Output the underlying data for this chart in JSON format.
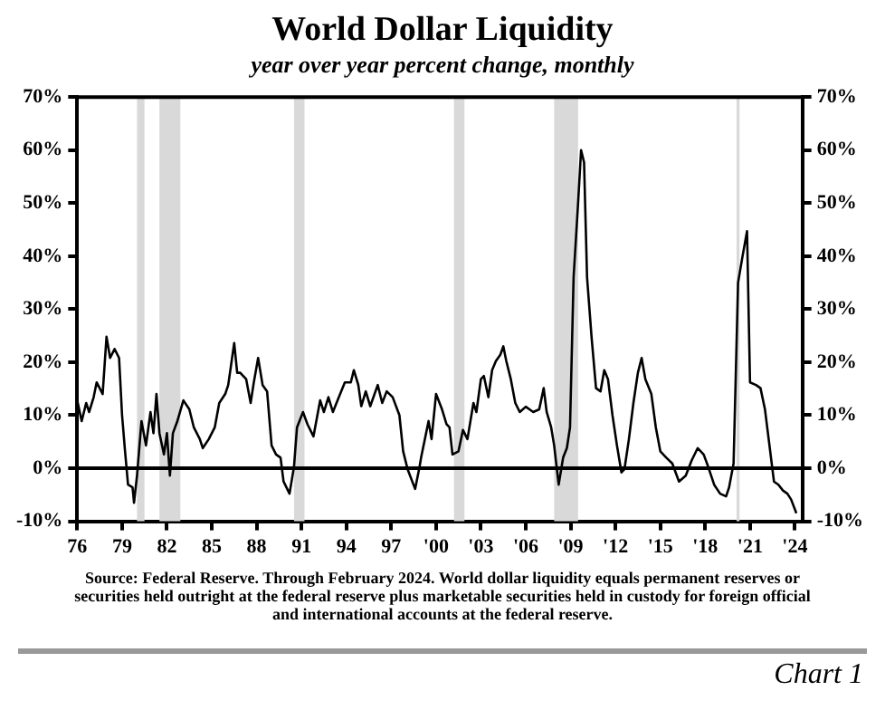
{
  "chart_data": {
    "type": "line",
    "title": "World Dollar Liquidity",
    "subtitle": "year over year percent change, monthly",
    "x": [
      1976.0,
      1976.3,
      1976.6,
      1976.8,
      1977.1,
      1977.3,
      1977.7,
      1977.96,
      1978.2,
      1978.5,
      1978.8,
      1979.0,
      1979.2,
      1979.4,
      1979.7,
      1979.8,
      1980.0,
      1980.3,
      1980.6,
      1980.9,
      1981.1,
      1981.3,
      1981.5,
      1981.8,
      1982.0,
      1982.2,
      1982.4,
      1982.7,
      1983.1,
      1983.5,
      1983.8,
      1984.2,
      1984.4,
      1984.8,
      1985.2,
      1985.5,
      1985.9,
      1986.1,
      1986.5,
      1986.7,
      1986.9,
      1987.3,
      1987.6,
      1987.8,
      1988.1,
      1988.4,
      1988.7,
      1989.0,
      1989.3,
      1989.6,
      1989.8,
      1990.2,
      1990.5,
      1990.7,
      1991.1,
      1991.4,
      1991.8,
      1992.25,
      1992.5,
      1992.8,
      1993.1,
      1993.5,
      1993.9,
      1994.3,
      1994.5,
      1994.8,
      1995.0,
      1995.3,
      1995.6,
      1996.1,
      1996.4,
      1996.7,
      1997.1,
      1997.55,
      1997.8,
      1998.1,
      1998.6,
      1998.9,
      1999.0,
      1999.5,
      1999.7,
      2000.0,
      2000.4,
      2000.7,
      2000.9,
      2001.1,
      2001.5,
      2001.8,
      2002.1,
      2002.5,
      2002.7,
      2003.0,
      2003.2,
      2003.5,
      2003.75,
      2004.0,
      2004.3,
      2004.5,
      2004.7,
      2005.0,
      2005.3,
      2005.6,
      2006.0,
      2006.25,
      2006.5,
      2006.9,
      2007.2,
      2007.4,
      2007.7,
      2007.9,
      2008.2,
      2008.5,
      2008.75,
      2008.96,
      2009.2,
      2009.5,
      2009.7,
      2009.9,
      2010.1,
      2010.4,
      2010.7,
      2011.0,
      2011.25,
      2011.5,
      2011.8,
      2012.1,
      2012.4,
      2012.6,
      2012.9,
      2013.2,
      2013.5,
      2013.75,
      2014.0,
      2014.4,
      2014.7,
      2015.0,
      2015.4,
      2015.8,
      2016.25,
      2016.7,
      2017.1,
      2017.5,
      2017.9,
      2018.2,
      2018.6,
      2019.0,
      2019.4,
      2019.6,
      2019.9,
      2020.2,
      2020.5,
      2020.8,
      2021.0,
      2021.4,
      2021.7,
      2022.0,
      2022.3,
      2022.6,
      2022.9,
      2023.2,
      2023.5,
      2023.75,
      2024.1
    ],
    "series": [
      {
        "color": "#000000",
        "values": [
          12.8,
          8.9,
          12.3,
          10.6,
          13.4,
          16.2,
          14,
          24.8,
          20.8,
          22.5,
          20.8,
          10,
          3.2,
          -3.1,
          -3.6,
          -6.5,
          -1.4,
          8.9,
          4.3,
          10.6,
          6.6,
          14,
          6.6,
          2.6,
          6.6,
          -1.4,
          6.6,
          8.9,
          12.8,
          11.1,
          7.7,
          5.5,
          3.8,
          5.5,
          7.7,
          12.3,
          14,
          15.7,
          23.6,
          18,
          18,
          16.8,
          12.3,
          16,
          20.8,
          15.7,
          14.5,
          4.3,
          2.6,
          2,
          -2.5,
          -4.8,
          0.3,
          7.7,
          10.6,
          8.3,
          6,
          12.8,
          10.6,
          13.4,
          10.6,
          13.4,
          16.2,
          16.2,
          18.5,
          15.7,
          11.7,
          14.5,
          11.7,
          15.7,
          12.3,
          14.5,
          13.4,
          10,
          3.2,
          -0.2,
          -3.9,
          0.3,
          2,
          8.9,
          5.5,
          14,
          11.1,
          8.3,
          7.7,
          2.6,
          3.2,
          7.2,
          5.5,
          12.3,
          10.6,
          16.8,
          17.4,
          13.4,
          18.5,
          20.2,
          21.4,
          23,
          20.2,
          16.8,
          12.3,
          10.6,
          11.6,
          11.1,
          10.6,
          11.1,
          15.1,
          10.6,
          7.7,
          4.3,
          -3.1,
          2,
          3.8,
          7.7,
          36,
          50,
          60,
          57.7,
          36,
          24.8,
          15.1,
          14.5,
          18.5,
          16.8,
          10,
          4.3,
          -0.8,
          -0.2,
          5.5,
          12.3,
          18,
          20.8,
          16.8,
          14,
          7.7,
          3.2,
          2,
          0.9,
          -2.5,
          -1.4,
          1.5,
          3.8,
          2.6,
          0.3,
          -3.1,
          -4.8,
          -5.3,
          -3.6,
          0.9,
          35,
          40,
          44.7,
          16.2,
          15.7,
          15.1,
          11.1,
          4.3,
          -2.5,
          -3.1,
          -4.2,
          -4.8,
          -5.9,
          -8.5
        ]
      }
    ],
    "xlim": [
      1976,
      2024.5
    ],
    "xticks": [
      {
        "value": 1976,
        "label": "76"
      },
      {
        "value": 1979,
        "label": "79"
      },
      {
        "value": 1982,
        "label": "82"
      },
      {
        "value": 1985,
        "label": "85"
      },
      {
        "value": 1988,
        "label": "88"
      },
      {
        "value": 1991,
        "label": "91"
      },
      {
        "value": 1994,
        "label": "94"
      },
      {
        "value": 1997,
        "label": "97"
      },
      {
        "value": 2000,
        "label": "'00"
      },
      {
        "value": 2003,
        "label": "'03"
      },
      {
        "value": 2006,
        "label": "'06"
      },
      {
        "value": 2009,
        "label": "'09"
      },
      {
        "value": 2012,
        "label": "'12"
      },
      {
        "value": 2015,
        "label": "'15"
      },
      {
        "value": 2018,
        "label": "'18"
      },
      {
        "value": 2021,
        "label": "'21"
      },
      {
        "value": 2024,
        "label": "'24"
      }
    ],
    "ylim": [
      -10,
      70
    ],
    "yticks": [
      {
        "value": -10,
        "label": "-10%"
      },
      {
        "value": 0,
        "label": "0%"
      },
      {
        "value": 10,
        "label": "10%"
      },
      {
        "value": 20,
        "label": "20%"
      },
      {
        "value": 30,
        "label": "30%"
      },
      {
        "value": 40,
        "label": "40%"
      },
      {
        "value": 50,
        "label": "50%"
      },
      {
        "value": 60,
        "label": "60%"
      },
      {
        "value": 70,
        "label": "70%"
      }
    ],
    "y2lim": [
      -10,
      70
    ],
    "y2ticks": [
      {
        "value": -10,
        "label": "-10%"
      },
      {
        "value": 0,
        "label": "0%"
      },
      {
        "value": 10,
        "label": "10%"
      },
      {
        "value": 20,
        "label": "20%"
      },
      {
        "value": 30,
        "label": "30%"
      },
      {
        "value": 40,
        "label": "40%"
      },
      {
        "value": 50,
        "label": "50%"
      },
      {
        "value": 60,
        "label": "60%"
      },
      {
        "value": 70,
        "label": "70%"
      }
    ],
    "ref_lines": [
      {
        "axis": "y",
        "value": 0,
        "color": "#000000"
      }
    ],
    "bands": [
      {
        "axis": "x",
        "from": 1980.0,
        "to": 1980.5,
        "color": "#d9d9d9"
      },
      {
        "axis": "x",
        "from": 1981.5,
        "to": 1982.9,
        "color": "#d9d9d9"
      },
      {
        "axis": "x",
        "from": 1990.5,
        "to": 1991.2,
        "color": "#d9d9d9"
      },
      {
        "axis": "x",
        "from": 2001.2,
        "to": 2001.9,
        "color": "#d9d9d9"
      },
      {
        "axis": "x",
        "from": 2007.9,
        "to": 2009.5,
        "color": "#d9d9d9"
      },
      {
        "axis": "x",
        "from": 2020.1,
        "to": 2020.3,
        "color": "#d9d9d9"
      }
    ],
    "grid": false,
    "legend": false,
    "marker": "none",
    "line_style": "solid",
    "annotations": [
      "Source: Federal Reserve. Through February 2024. World dollar liquidity equals permanent reserves or securities held outright at the federal reserve plus marketable securities held in custody for foreign official and international accounts at the federal reserve.",
      "Chart 1"
    ]
  }
}
